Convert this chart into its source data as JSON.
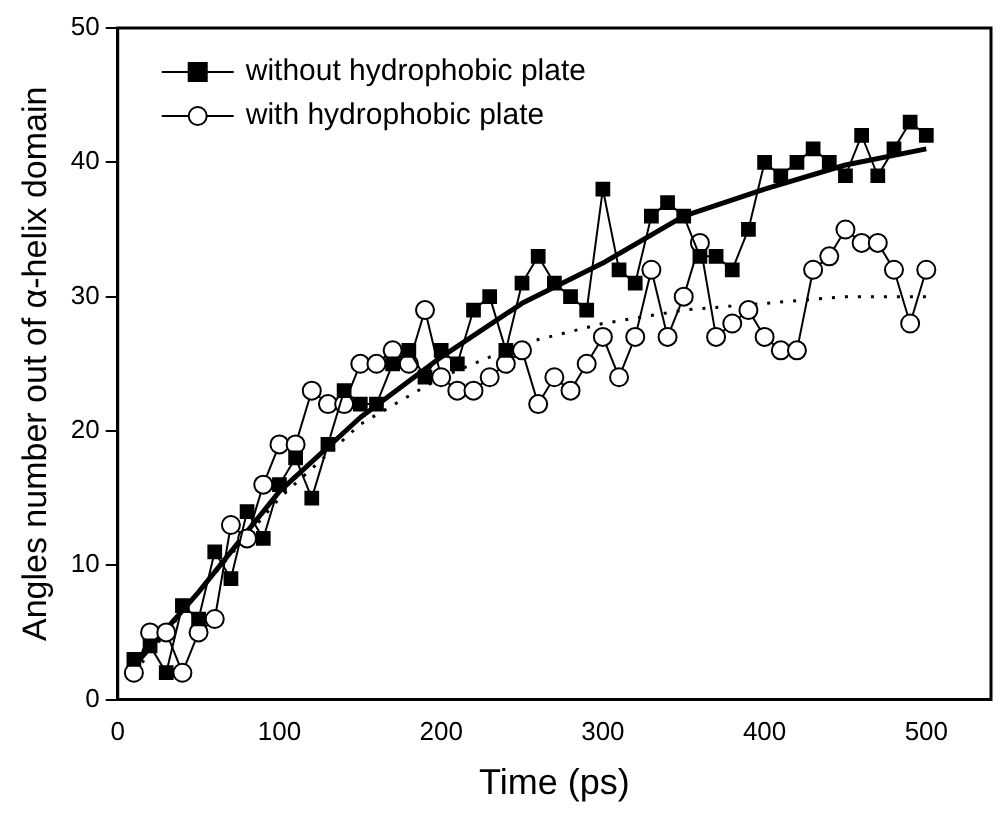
{
  "chart_data": {
    "type": "line",
    "xlabel": "Time (ps)",
    "ylabel": "Angles number out of α-helix domain",
    "xlim": [
      0,
      540
    ],
    "xticks": [
      0,
      100,
      200,
      300,
      400,
      500
    ],
    "ylim": [
      0,
      50
    ],
    "yticks": [
      0,
      10,
      20,
      30,
      40,
      50
    ],
    "grid": false,
    "legend": "top left",
    "x": [
      10,
      20,
      30,
      40,
      50,
      60,
      70,
      80,
      90,
      100,
      110,
      120,
      130,
      140,
      150,
      160,
      170,
      180,
      190,
      200,
      210,
      220,
      230,
      240,
      250,
      260,
      270,
      280,
      290,
      300,
      310,
      320,
      330,
      340,
      350,
      360,
      370,
      380,
      390,
      400,
      410,
      420,
      430,
      440,
      450,
      460,
      470,
      480,
      490,
      500
    ],
    "series": [
      {
        "name": "without hydrophobic plate",
        "color": "#000000",
        "marker": "square",
        "line_style": "solid",
        "values": [
          3,
          4,
          2,
          7,
          6,
          11,
          9,
          14,
          12,
          16,
          18,
          15,
          19,
          23,
          22,
          22,
          25,
          26,
          24,
          26,
          25,
          29,
          30,
          26,
          31,
          33,
          31,
          30,
          29,
          38,
          32,
          31,
          36,
          37,
          36,
          33,
          33,
          32,
          35,
          40,
          39,
          40,
          41,
          40,
          39,
          42,
          39,
          41,
          43,
          42
        ]
      },
      {
        "name": "with hydrophobic plate",
        "color": "#000000",
        "marker": "circle",
        "line_style": "solid",
        "values": [
          2,
          5,
          5,
          2,
          5,
          6,
          13,
          12,
          16,
          19,
          19,
          23,
          22,
          22,
          25,
          25,
          26,
          25,
          29,
          24,
          23,
          23,
          24,
          25,
          26,
          22,
          24,
          23,
          25,
          27,
          24,
          27,
          32,
          27,
          30,
          34,
          27,
          28,
          29,
          27,
          26,
          26,
          32,
          33,
          35,
          34,
          34,
          32,
          28,
          32
        ]
      },
      {
        "type": "line",
        "color": "#000000",
        "marker": "none",
        "line_style": "solid",
        "x": [
          10,
          50,
          100,
          150,
          200,
          250,
          300,
          350,
          400,
          450,
          500
        ],
        "values": [
          2.5,
          8,
          15.5,
          21,
          25.5,
          29.5,
          32.5,
          36,
          38,
          39.8,
          41
        ]
      },
      {
        "type": "line",
        "color": "#000000",
        "marker": "none",
        "line_style": "dotted",
        "x": [
          10,
          50,
          100,
          150,
          200,
          250,
          300,
          350,
          400,
          450,
          500
        ],
        "values": [
          2,
          8,
          15,
          20.5,
          24,
          26.5,
          28,
          29,
          29.5,
          30,
          30
        ]
      }
    ]
  }
}
